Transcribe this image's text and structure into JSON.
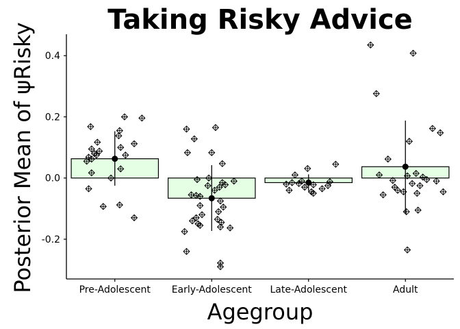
{
  "chart_data": {
    "type": "bar",
    "title": "Taking Risky Advice",
    "xlabel": "Agegroup",
    "ylabel": "Posterior Mean of ψRisky",
    "categories": [
      "Pre-Adolescent",
      "Early-Adolescent",
      "Late-Adolescent",
      "Adult"
    ],
    "ylim": [
      -0.33,
      0.47
    ],
    "yticks": [
      0.4,
      0.2,
      0.0,
      -0.2
    ],
    "ytick_labels": [
      "0.4",
      "0.2",
      "0.0",
      "-0.2"
    ],
    "grid": false,
    "colors": {
      "bar_fill": "#e5ffe5",
      "bar_stroke": "#000000",
      "point": "#000000"
    },
    "series": [
      {
        "values": [
          0.063,
          -0.066,
          -0.015,
          0.037
        ],
        "error_low": [
          -0.025,
          -0.173,
          -0.042,
          -0.116
        ],
        "error_high": [
          0.153,
          0.042,
          0.012,
          0.188
        ]
      }
    ],
    "points": [
      [
        [
          0.168,
          -0.25
        ],
        [
          0.2,
          0.1
        ],
        [
          0.196,
          0.28
        ],
        [
          0.155,
          0.05
        ],
        [
          0.138,
          0.04
        ],
        [
          0.117,
          -0.18
        ],
        [
          0.112,
          0.2
        ],
        [
          0.1,
          0.06
        ],
        [
          0.095,
          -0.24
        ],
        [
          0.088,
          -0.16
        ],
        [
          0.08,
          -0.21
        ],
        [
          0.075,
          -0.19
        ],
        [
          0.075,
          0.11
        ],
        [
          0.068,
          -0.27
        ],
        [
          0.062,
          -0.24
        ],
        [
          0.055,
          -0.29
        ],
        [
          0.03,
          0.06
        ],
        [
          0.017,
          -0.24
        ],
        [
          0.0,
          -0.04
        ],
        [
          -0.035,
          -0.27
        ],
        [
          -0.088,
          0.05
        ],
        [
          -0.093,
          -0.12
        ],
        [
          -0.13,
          0.2
        ]
      ],
      [
        [
          0.165,
          0.04
        ],
        [
          0.16,
          -0.26
        ],
        [
          0.128,
          -0.18
        ],
        [
          0.083,
          0.0
        ],
        [
          0.083,
          -0.25
        ],
        [
          0.047,
          0.11
        ],
        [
          0.0,
          -0.03
        ],
        [
          -0.005,
          -0.15
        ],
        [
          -0.01,
          0.23
        ],
        [
          -0.015,
          0.11
        ],
        [
          -0.022,
          0.14
        ],
        [
          -0.025,
          -0.04
        ],
        [
          -0.03,
          0.08
        ],
        [
          -0.04,
          0.03
        ],
        [
          -0.055,
          -0.21
        ],
        [
          -0.057,
          -0.16
        ],
        [
          -0.06,
          -0.12
        ],
        [
          -0.075,
          0.09
        ],
        [
          -0.09,
          -0.12
        ],
        [
          -0.095,
          0.12
        ],
        [
          -0.11,
          0.07
        ],
        [
          -0.12,
          -0.1
        ],
        [
          -0.13,
          -0.16
        ],
        [
          -0.135,
          0.06
        ],
        [
          -0.14,
          -0.2
        ],
        [
          -0.145,
          0.1
        ],
        [
          -0.15,
          -0.14
        ],
        [
          -0.155,
          -0.12
        ],
        [
          -0.16,
          0.09
        ],
        [
          -0.163,
          0.19
        ],
        [
          -0.175,
          -0.28
        ],
        [
          -0.24,
          -0.26
        ],
        [
          -0.278,
          0.09
        ],
        [
          -0.29,
          0.09
        ]
      ],
      [
        [
          0.045,
          0.28
        ],
        [
          0.031,
          -0.01
        ],
        [
          0.01,
          -0.14
        ],
        [
          -0.01,
          -0.07
        ],
        [
          -0.012,
          0.22
        ],
        [
          -0.015,
          -0.17
        ],
        [
          -0.018,
          -0.1
        ],
        [
          -0.02,
          -0.23
        ],
        [
          -0.022,
          0.05
        ],
        [
          -0.025,
          0.2
        ],
        [
          -0.03,
          -0.04
        ],
        [
          -0.035,
          0.14
        ],
        [
          -0.04,
          -0.2
        ],
        [
          -0.045,
          0.03
        ],
        [
          -0.05,
          0.05
        ]
      ],
      [
        [
          0.435,
          -0.36
        ],
        [
          0.408,
          0.08
        ],
        [
          0.276,
          -0.3
        ],
        [
          0.162,
          0.28
        ],
        [
          0.148,
          0.36
        ],
        [
          0.12,
          0.04
        ],
        [
          0.062,
          -0.18
        ],
        [
          0.015,
          0.11
        ],
        [
          0.01,
          -0.27
        ],
        [
          0.007,
          0.02
        ],
        [
          0.003,
          0.18
        ],
        [
          -0.005,
          0.22
        ],
        [
          -0.008,
          -0.13
        ],
        [
          -0.01,
          0.32
        ],
        [
          -0.018,
          0.07
        ],
        [
          -0.025,
          0.15
        ],
        [
          -0.03,
          -0.11
        ],
        [
          -0.04,
          -0.08
        ],
        [
          -0.045,
          -0.02
        ],
        [
          -0.045,
          0.39
        ],
        [
          -0.05,
          0.12
        ],
        [
          -0.055,
          -0.23
        ],
        [
          -0.105,
          0.13
        ],
        [
          -0.11,
          0.01
        ],
        [
          -0.235,
          0.02
        ]
      ]
    ]
  }
}
